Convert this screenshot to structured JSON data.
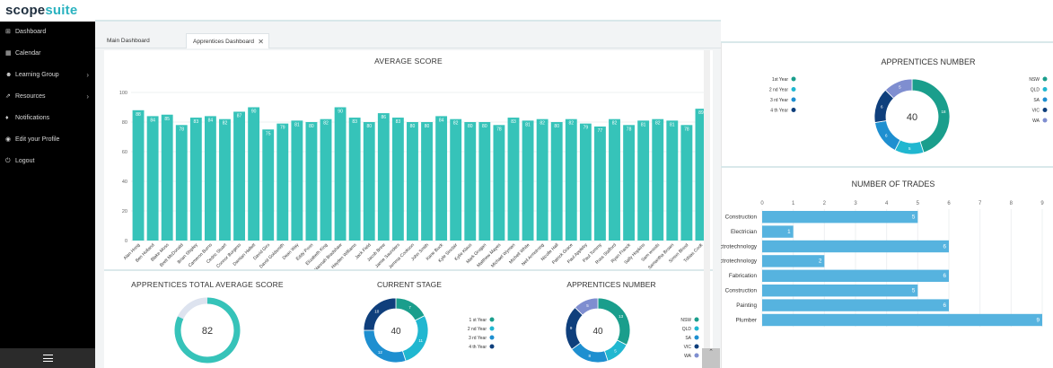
{
  "app": {
    "logo_part1": "scope",
    "logo_part2": "suite"
  },
  "sidebar": {
    "items": [
      {
        "label": "Dashboard",
        "icon": "dashboard-icon",
        "glyph": "⊞",
        "chevron": false
      },
      {
        "label": "Calendar",
        "icon": "calendar-icon",
        "glyph": "▦",
        "chevron": false
      },
      {
        "label": "Learning Group",
        "icon": "users-icon",
        "glyph": "☻",
        "chevron": true
      },
      {
        "label": "Resources",
        "icon": "external-link-icon",
        "glyph": "⇗",
        "chevron": true
      },
      {
        "label": "Notifications",
        "icon": "bell-icon",
        "glyph": "♦",
        "chevron": false
      },
      {
        "label": "Edit your Profile",
        "icon": "user-circle-icon",
        "glyph": "◉",
        "chevron": false
      },
      {
        "label": "Logout",
        "icon": "logout-icon",
        "glyph": "⏻",
        "chevron": false
      }
    ]
  },
  "tabs": [
    {
      "label": "Main Dashboard",
      "active": false
    },
    {
      "label": "Apprentices Dashboard",
      "active": true,
      "close": "✕"
    }
  ],
  "average_score": {
    "title": "AVERAGE SCORE",
    "ylim": [
      0,
      100
    ],
    "yticks": [
      "0",
      "20",
      "40",
      "60",
      "80",
      "100"
    ],
    "bar_color": "#36c3b9",
    "names": [
      "Alan Hong",
      "Ben Holland",
      "Blake Moss",
      "Brett McDonald",
      "Brian Shipley",
      "Cameron Burns",
      "Cedric Stuart",
      "Connor Burgess",
      "Damian Hallett",
      "David Giro",
      "David Goldsmith",
      "Dean Way",
      "Eddy Poon",
      "Elizabeth King",
      "Hannah Bradshaw",
      "Hayden Williams",
      "Jack Field",
      "Jacob Brew",
      "Jamie Saunders",
      "Jemma Cookson",
      "John Smith",
      "Kane Buck",
      "Kyle Sinclair",
      "Kylie Klaus",
      "Mark Grogan",
      "Matthew Mayes",
      "Michael Wyman",
      "Michell White",
      "Neil Armstrong",
      "Nicolle Hall",
      "Patrick Grace",
      "Paul Appleby",
      "Paul Tommy",
      "Ross Stafford",
      "Ryan Franck",
      "Sally Hopkins",
      "Sam woods",
      "Samantha Brown",
      "Simon Blood",
      "Tobias Cook"
    ],
    "values": [
      88,
      84,
      85,
      78,
      83,
      84,
      82,
      87,
      90,
      75,
      79,
      81,
      80,
      82,
      90,
      83,
      80,
      86,
      83,
      80,
      80,
      84,
      82,
      80,
      80,
      78,
      83,
      81,
      82,
      80,
      82,
      79,
      77,
      82,
      78,
      81,
      82,
      81,
      78,
      89
    ]
  },
  "total_average": {
    "title": "APPRENTICES TOTAL AVERAGE SCORE",
    "value": 82,
    "label": "82",
    "ring_color": "#36c3b9",
    "track_color": "#dde3ef"
  },
  "current_stage": {
    "title": "CURRENT STAGE",
    "center": "40",
    "segments": [
      {
        "name": "1 st Year",
        "value": 7,
        "label": "7",
        "color": "#1a9e8c"
      },
      {
        "name": "2 nd Year",
        "value": 11,
        "label": "11",
        "color": "#20b7d0"
      },
      {
        "name": "3 rd Year",
        "value": 12,
        "label": "12",
        "color": "#1e8fd0"
      },
      {
        "name": "4 th Year",
        "value": 10,
        "label": "10",
        "color": "#0f3f7c"
      }
    ]
  },
  "apprentices_number": {
    "title": "APPRENTICES NUMBER",
    "center": "40",
    "years": [
      {
        "name": "1st Year",
        "color": "#1a9e8c"
      },
      {
        "name": "2 nd Year",
        "color": "#20b7d0"
      },
      {
        "name": "3 rd Year",
        "color": "#1e8fd0"
      },
      {
        "name": "4 th Year",
        "color": "#0f3f7c"
      }
    ],
    "states": [
      {
        "name": "NSW",
        "value": 18,
        "label": "18",
        "color": "#1a9e8c"
      },
      {
        "name": "QLD",
        "value": 5,
        "label": "5",
        "color": "#20b7d0"
      },
      {
        "name": "SA",
        "value": 6,
        "label": "6",
        "color": "#1e8fd0"
      },
      {
        "name": "VIC",
        "value": 6,
        "label": "6",
        "color": "#0f3f7c"
      },
      {
        "name": "WA",
        "value": 5,
        "label": "5",
        "color": "#7f8ed0"
      }
    ]
  },
  "apprentices_number_small": {
    "title": "APPRENTICES NUMBER",
    "center": "40",
    "states": [
      {
        "name": "NSW",
        "value": 13,
        "label": "13",
        "color": "#1a9e8c"
      },
      {
        "name": "QLD",
        "value": 5,
        "label": "5",
        "color": "#20b7d0"
      },
      {
        "name": "SA",
        "value": 8,
        "label": "8",
        "color": "#1e8fd0"
      },
      {
        "name": "VIC",
        "value": 9,
        "label": "9",
        "color": "#0f3f7c"
      },
      {
        "name": "WA",
        "value": 5,
        "label": "5",
        "color": "#7f8ed0"
      }
    ]
  },
  "trades": {
    "title": "NUMBER OF TRADES",
    "xticks": [
      "0",
      "1",
      "2",
      "3",
      "4",
      "5",
      "6",
      "7",
      "8",
      "9"
    ],
    "bar_color": "#56b3df",
    "items": [
      {
        "name": "Construction",
        "value": 5,
        "label": "5"
      },
      {
        "name": "Electrician",
        "value": 1,
        "label": "1"
      },
      {
        "name": "ectrotechnology",
        "value": 6,
        "label": "6"
      },
      {
        "name": "ectrotechnology",
        "value": 2,
        "label": "2"
      },
      {
        "name": "Fabrication",
        "value": 6,
        "label": "6"
      },
      {
        "name": "Construction",
        "value": 5,
        "label": "5"
      },
      {
        "name": "Painting",
        "value": 6,
        "label": "6"
      },
      {
        "name": "Plumber",
        "value": 9,
        "label": "9"
      }
    ]
  },
  "chart_data": [
    {
      "type": "bar",
      "title": "AVERAGE SCORE",
      "categories": [
        "Alan Hong",
        "Ben Holland",
        "Blake Moss",
        "Brett McDonald",
        "Brian Shipley",
        "Cameron Burns",
        "Cedric Stuart",
        "Connor Burgess",
        "Damian Hallett",
        "David Giro",
        "David Goldsmith",
        "Dean Way",
        "Eddy Poon",
        "Elizabeth King",
        "Hannah Bradshaw",
        "Hayden Williams",
        "Jack Field",
        "Jacob Brew",
        "Jamie Saunders",
        "Jemma Cookson",
        "John Smith",
        "Kane Buck",
        "Kyle Sinclair",
        "Kylie Klaus",
        "Mark Grogan",
        "Matthew Mayes",
        "Michael Wyman",
        "Michell White",
        "Neil Armstrong",
        "Nicolle Hall",
        "Patrick Grace",
        "Paul Appleby",
        "Paul Tommy",
        "Ross Stafford",
        "Ryan Franck",
        "Sally Hopkins",
        "Sam woods",
        "Samantha Brown",
        "Simon Blood",
        "Tobias Cook"
      ],
      "values": [
        88,
        84,
        85,
        78,
        83,
        84,
        82,
        87,
        90,
        75,
        79,
        81,
        80,
        82,
        90,
        83,
        80,
        86,
        83,
        80,
        80,
        84,
        82,
        80,
        80,
        78,
        83,
        81,
        82,
        80,
        82,
        79,
        77,
        82,
        78,
        81,
        82,
        81,
        78,
        89
      ],
      "ylim": [
        0,
        100
      ],
      "grid": true
    },
    {
      "type": "pie",
      "title": "APPRENTICES TOTAL AVERAGE SCORE",
      "categories": [
        "score"
      ],
      "values": [
        82
      ],
      "ylim": [
        0,
        100
      ]
    },
    {
      "type": "pie",
      "title": "CURRENT STAGE",
      "categories": [
        "1 st Year",
        "2 nd Year",
        "3 rd Year",
        "4 th Year"
      ],
      "values": [
        7,
        11,
        12,
        10
      ]
    },
    {
      "type": "pie",
      "title": "APPRENTICES NUMBER",
      "categories": [
        "NSW",
        "QLD",
        "SA",
        "VIC",
        "WA"
      ],
      "values": [
        13,
        5,
        8,
        9,
        5
      ]
    },
    {
      "type": "pie",
      "title": "APPRENTICES NUMBER",
      "categories": [
        "NSW",
        "QLD",
        "SA",
        "VIC",
        "WA"
      ],
      "values": [
        18,
        5,
        6,
        6,
        5
      ]
    },
    {
      "type": "bar",
      "title": "NUMBER OF TRADES",
      "categories": [
        "Construction",
        "Electrician",
        "ectrotechnology",
        "ectrotechnology",
        "Fabrication",
        "Construction",
        "Painting",
        "Plumber"
      ],
      "values": [
        5,
        1,
        6,
        2,
        6,
        5,
        6,
        9
      ],
      "xlim": [
        0,
        9
      ],
      "grid": true
    }
  ]
}
